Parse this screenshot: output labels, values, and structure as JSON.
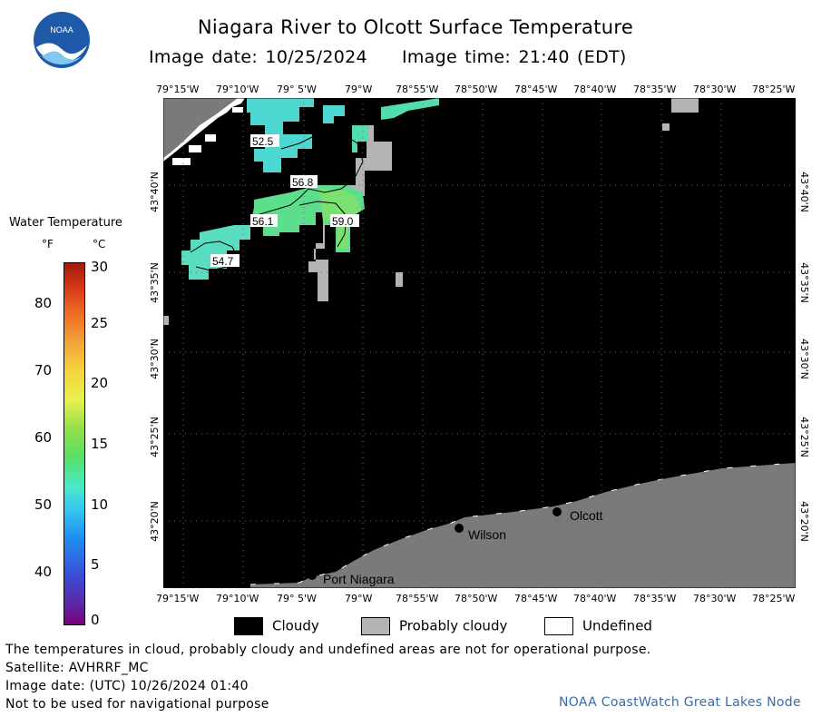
{
  "header": {
    "title": "Niagara River to Olcott Surface Temperature",
    "image_date": "Image date: 10/25/2024",
    "image_time": "Image time: 21:40 (EDT)"
  },
  "logo": {
    "text": "NOAA"
  },
  "map": {
    "lon_labels": [
      "79°15'W",
      "79°10'W",
      "79° 5'W",
      "79°W",
      "78°55'W",
      "78°50'W",
      "78°45'W",
      "78°40'W",
      "78°35'W",
      "78°30'W",
      "78°25'W"
    ],
    "lat_labels": [
      "43°40'N",
      "43°35'N",
      "43°30'N",
      "43°25'N",
      "43°20'N"
    ],
    "temperature_labels": [
      "52.5",
      "56.8",
      "56.1",
      "59.0",
      "54.7"
    ],
    "places": [
      "Olcott",
      "Wilson",
      "Port Niagara"
    ]
  },
  "colorbar": {
    "title": "Water Temperature",
    "unit_f": "°F",
    "unit_c": "°C",
    "fahrenheit_ticks": [
      "80",
      "70",
      "60",
      "50",
      "40"
    ],
    "celsius_ticks": [
      "30",
      "25",
      "20",
      "15",
      "10",
      "5",
      "0"
    ]
  },
  "legend": {
    "items": [
      {
        "label": "Cloudy",
        "color": "#000000"
      },
      {
        "label": "Probably cloudy",
        "color": "#b4b4b4"
      },
      {
        "label": "Undefined",
        "color": "#ffffff"
      }
    ]
  },
  "footer": {
    "note": "The temperatures in cloud, probably cloudy and undefined areas are not for operational purpose.",
    "satellite": "Satellite: AVHRRF_MC",
    "utc_date": "Image date: (UTC) 10/26/2024  01:40",
    "navigation": "Not to be used for navigational purpose",
    "credit": "NOAA CoastWatch Great Lakes Node"
  },
  "colors": {
    "cloud": "#000000",
    "probably_cloudy": "#b4b4b4",
    "land": "#7a7a7a",
    "undefined": "#ffffff",
    "credit_text": "#3a6aaa"
  }
}
